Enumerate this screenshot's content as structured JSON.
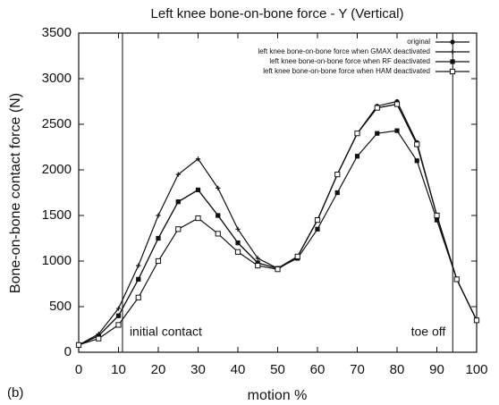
{
  "chart_data": {
    "type": "line",
    "title": "Left knee bone-on-bone force - Y (Vertical)",
    "x_label": "motion %",
    "y_label": "Bone-on-bone contact force (N)",
    "panel_label": "(b)",
    "x": [
      0,
      5,
      10,
      15,
      20,
      25,
      30,
      35,
      40,
      45,
      50,
      55,
      60,
      65,
      70,
      75,
      80,
      85,
      90,
      95,
      100
    ],
    "series": [
      {
        "name": "original",
        "color": "#111111",
        "marker": "circle",
        "values": [
          80,
          180,
          400,
          800,
          1250,
          1650,
          1780,
          1500,
          1200,
          980,
          920,
          1050,
          1450,
          1950,
          2400,
          2700,
          2750,
          2300,
          1500,
          800,
          350
        ]
      },
      {
        "name": "left knee bone-on-bone force when GMAX deactivated",
        "color": "#111111",
        "marker": "plus",
        "values": [
          80,
          200,
          480,
          950,
          1500,
          1950,
          2120,
          1800,
          1350,
          1030,
          920,
          1050,
          1450,
          1950,
          2400,
          2680,
          2720,
          2280,
          1500,
          800,
          350
        ]
      },
      {
        "name": "left knee bone-on-bone force when RF deactivated",
        "color": "#111111",
        "marker": "square",
        "values": [
          80,
          180,
          400,
          800,
          1250,
          1650,
          1780,
          1500,
          1200,
          980,
          920,
          1030,
          1350,
          1750,
          2150,
          2400,
          2430,
          2100,
          1450,
          800,
          350
        ]
      },
      {
        "name": "left knee bone-on-bone force when HAM deactivated",
        "color": "#111111",
        "marker": "open-square",
        "values": [
          80,
          150,
          300,
          600,
          1000,
          1350,
          1470,
          1300,
          1100,
          950,
          910,
          1050,
          1450,
          1950,
          2400,
          2680,
          2720,
          2280,
          1500,
          800,
          350
        ]
      }
    ],
    "annotations": [
      {
        "x": 11,
        "label": "initial contact"
      },
      {
        "x": 94,
        "label": "toe off"
      }
    ],
    "xlim": [
      0,
      100
    ],
    "xticks": [
      0,
      10,
      20,
      30,
      40,
      50,
      60,
      70,
      80,
      90,
      100
    ],
    "ylim": [
      0,
      3500
    ],
    "yticks": [
      0,
      500,
      1000,
      1500,
      2000,
      2500,
      3000,
      3500
    ],
    "legend": "upper right",
    "grid": false
  }
}
